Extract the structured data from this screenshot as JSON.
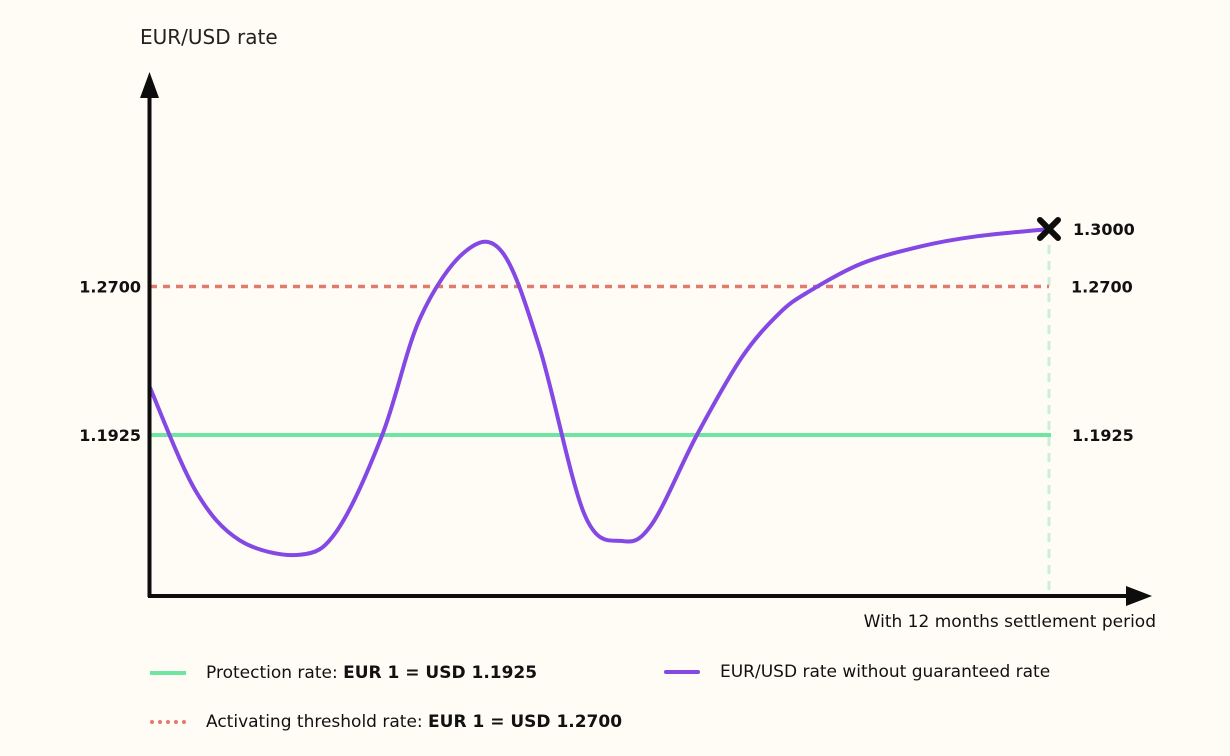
{
  "chart_data": {
    "type": "line",
    "ylabel": "EUR/USD rate",
    "xlabel": "With 12 months settlement period",
    "ylim": [
      1.09,
      1.37
    ],
    "xlim": [
      0,
      12
    ],
    "grid": false,
    "legend_placement": "bottom",
    "series": [
      {
        "name": "EUR/USD rate without guaranteed rate",
        "color": "#8448e4",
        "x": [
          0,
          0.6,
          1.2,
          2.0,
          2.5,
          3.1,
          3.6,
          4.2,
          4.7,
          5.2,
          5.8,
          6.3,
          6.7,
          7.3,
          7.9,
          8.4,
          8.8,
          9.5,
          10.3,
          11.0,
          12.0
        ],
        "y": [
          1.2172,
          1.164,
          1.1375,
          1.13,
          1.1428,
          1.1925,
          1.253,
          1.288,
          1.288,
          1.238,
          1.151,
          1.1372,
          1.146,
          1.1925,
          1.233,
          1.256,
          1.2675,
          1.282,
          1.291,
          1.296,
          1.3
        ]
      },
      {
        "name": "Protection rate",
        "color": "#6ee6a2",
        "style": "solid",
        "x": [
          0,
          12
        ],
        "y": [
          1.1925,
          1.1925
        ]
      },
      {
        "name": "Activating threshold rate",
        "color": "#e07a6d",
        "style": "dotted",
        "x": [
          0,
          12
        ],
        "y": [
          1.27,
          1.27
        ]
      }
    ],
    "y_ticks": [
      "1.2700",
      "1.1925"
    ],
    "end_labels": [
      "1.3000",
      "1.2700",
      "1.1925"
    ],
    "end_marker": {
      "icon": "x-mark-icon",
      "x": 12,
      "y": 1.3
    }
  },
  "legend": {
    "protection": {
      "prefix": "Protection rate: ",
      "value": "EUR 1 = USD 1.1925",
      "color": "#6ee6a2"
    },
    "rate": {
      "text": "EUR/USD rate without guaranteed rate",
      "color": "#8448e4"
    },
    "threshold": {
      "prefix": "Activating threshold rate: ",
      "value": "EUR 1 = USD 1.2700",
      "color": "#e07a6d"
    }
  },
  "colors": {
    "background": "#fffcf5",
    "axis": "#0d0d0d",
    "settlement_guide": "#cfeed9"
  }
}
